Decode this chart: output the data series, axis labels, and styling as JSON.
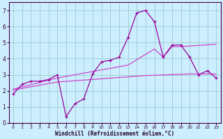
{
  "xlabel": "Windchill (Refroidissement éolien,°C)",
  "bg_color": "#cceeff",
  "grid_color": "#99cccc",
  "line_color1": "#990099",
  "line_color2": "#cc44cc",
  "xlim": [
    -0.5,
    23.5
  ],
  "ylim": [
    0,
    7.5
  ],
  "xticks": [
    0,
    1,
    2,
    3,
    4,
    5,
    6,
    7,
    8,
    9,
    10,
    11,
    12,
    13,
    14,
    15,
    16,
    17,
    18,
    19,
    20,
    21,
    22,
    23
  ],
  "yticks": [
    0,
    1,
    2,
    3,
    4,
    5,
    6,
    7
  ],
  "series1_x": [
    0,
    1,
    2,
    3,
    4,
    5,
    6,
    7,
    8,
    9,
    10,
    11,
    12,
    13,
    14,
    15,
    16,
    17,
    18,
    19,
    20,
    21,
    22,
    23
  ],
  "series1_y": [
    1.8,
    2.4,
    2.6,
    2.6,
    2.7,
    3.0,
    0.4,
    1.2,
    1.5,
    3.05,
    3.8,
    3.9,
    4.1,
    5.3,
    6.85,
    7.0,
    6.3,
    4.1,
    4.85,
    4.85,
    4.1,
    3.0,
    3.25,
    2.8
  ],
  "series2_x": [
    0,
    5,
    10,
    13,
    16,
    17,
    18,
    19,
    23
  ],
  "series2_y": [
    2.1,
    2.8,
    3.3,
    3.6,
    4.6,
    4.1,
    4.75,
    4.75,
    4.9
  ],
  "series3_x": [
    0,
    5,
    10,
    15,
    20,
    23
  ],
  "series3_y": [
    2.05,
    2.55,
    2.75,
    2.95,
    3.05,
    3.05
  ]
}
